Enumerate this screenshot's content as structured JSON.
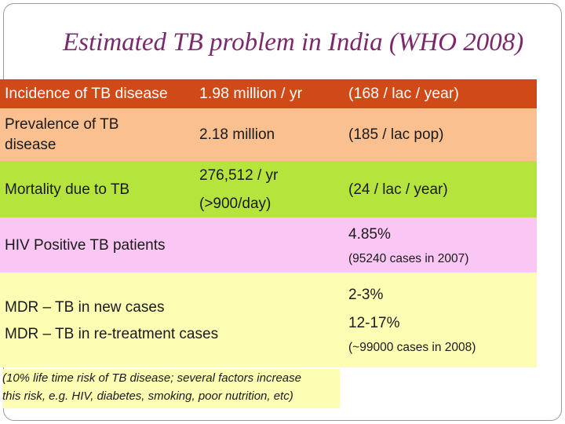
{
  "title": "Estimated TB problem in India (WHO 2008)",
  "colors": {
    "title": "#7a2a6a",
    "header_row": "#d04a17",
    "prevalence_row": "#fbc08f",
    "mortality_row": "#b5e43c",
    "hiv_row": "#fac6f3",
    "mdr_row": "#fdfdb4"
  },
  "rows": {
    "incidence": {
      "label": "Incidence of TB disease",
      "value": "1.98 million / yr",
      "rate": "(168 / lac / year)"
    },
    "prevalence": {
      "label_line1": "Prevalence of TB",
      "label_line2": "disease",
      "value": "2.18 million",
      "rate": "(185 / lac pop)"
    },
    "mortality": {
      "label": "Mortality due to TB",
      "value_line1": "276,512 / yr",
      "value_line2": "(>900/day)",
      "rate": "(24 / lac / year)"
    },
    "hiv": {
      "label": "HIV Positive TB patients",
      "rate": "4.85%",
      "rate_note": "(95240 cases in 2007)"
    },
    "mdr": {
      "label_new": "MDR – TB in new cases",
      "label_retreat": "MDR – TB in re-treatment cases",
      "rate_new": "2-3%",
      "rate_retreat": "12-17%",
      "rate_note": "(~99000 cases in 2008)"
    }
  },
  "footnote": {
    "line1": "(10% life time risk of TB disease; several factors increase",
    "line2": "this risk, e.g. HIV, diabetes, smoking, poor nutrition, etc)"
  }
}
